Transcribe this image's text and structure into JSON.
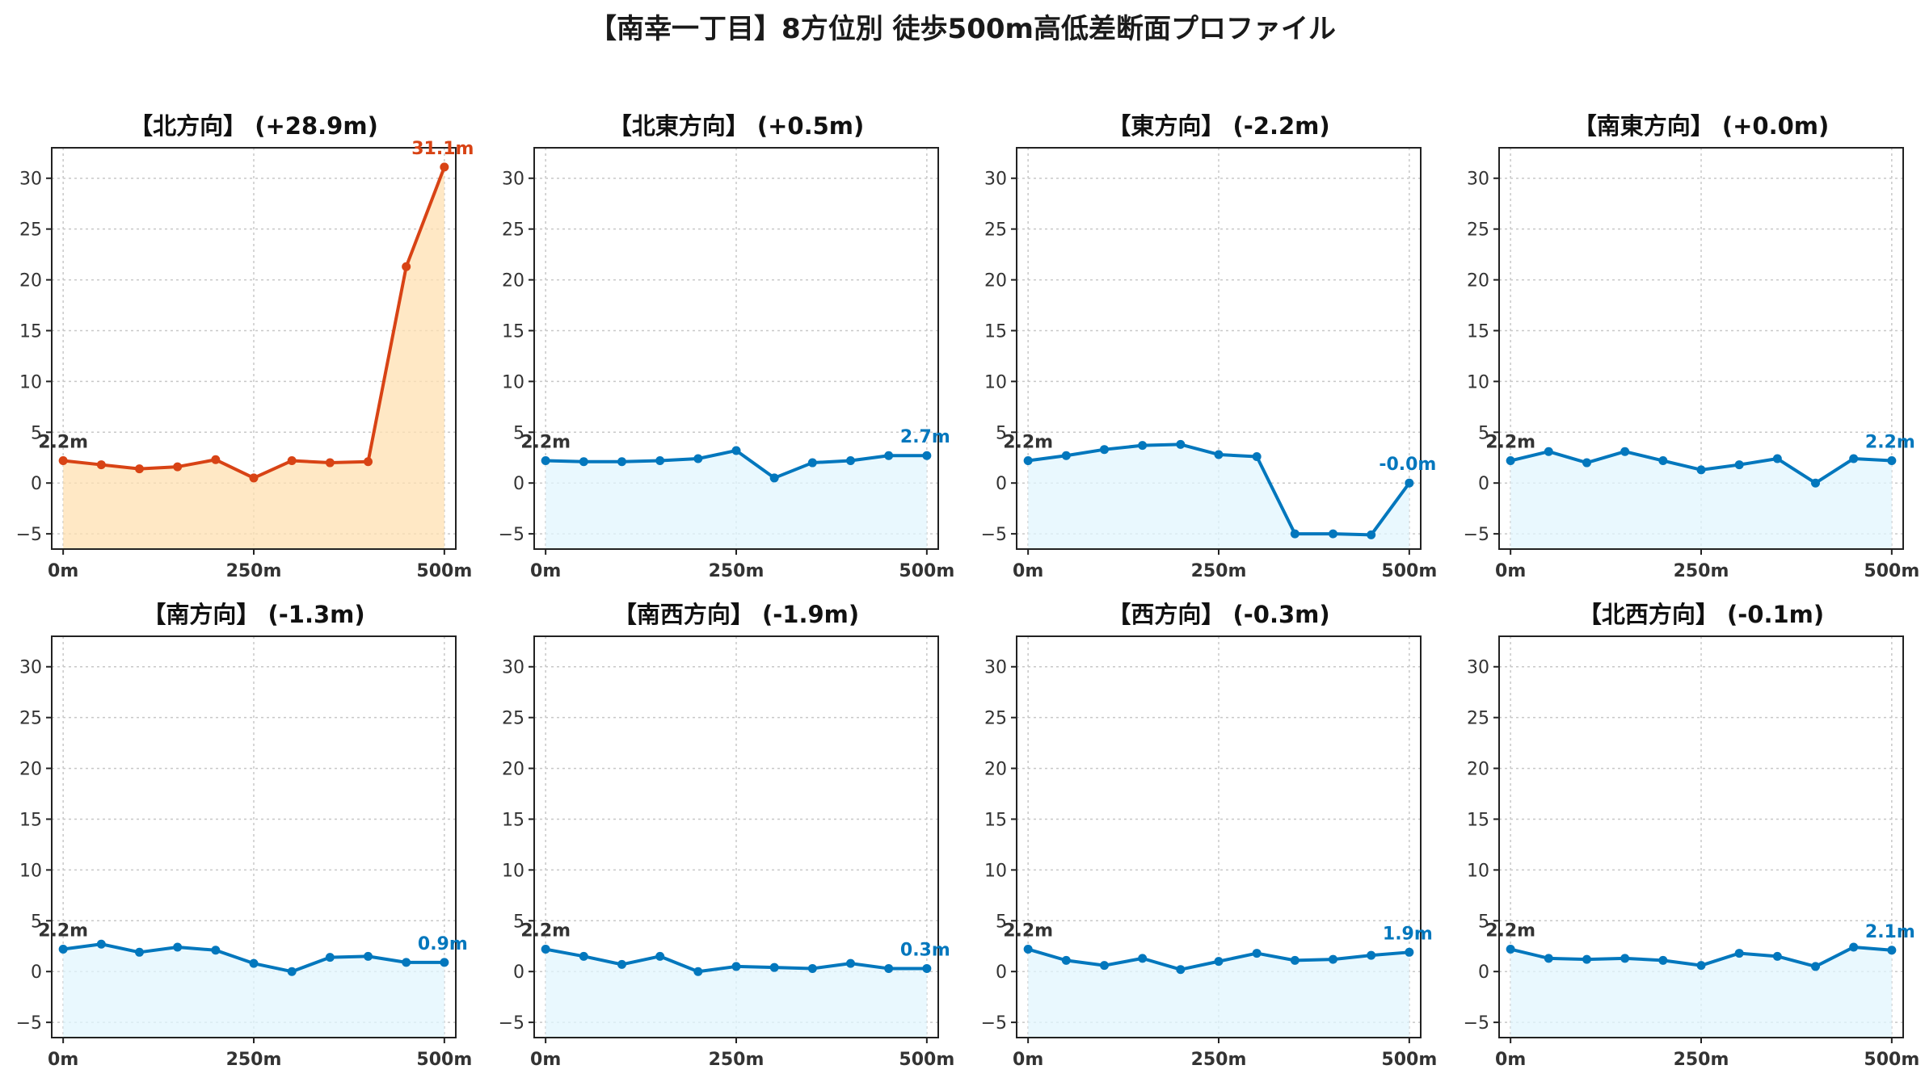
{
  "title": "【南幸一丁目】8方位別 徒歩500m高低差断面プロファイル",
  "colors": {
    "up": "#d84315",
    "up_fill": "#ffe0b2",
    "down": "#0277bd",
    "down_fill": "#e1f5fe",
    "start_label": "#333333"
  },
  "chart_data": [
    {
      "type": "area",
      "title": "【北方向】 (+28.9m)",
      "trend": "up",
      "x": [
        0,
        50,
        100,
        150,
        200,
        250,
        300,
        350,
        400,
        450,
        500
      ],
      "values": [
        2.2,
        1.8,
        1.4,
        1.6,
        2.3,
        0.5,
        2.2,
        2.0,
        2.1,
        21.3,
        31.1
      ],
      "start_label": "2.2m",
      "end_label": "31.1m"
    },
    {
      "type": "area",
      "title": "【北東方向】 (+0.5m)",
      "trend": "down",
      "x": [
        0,
        50,
        100,
        150,
        200,
        250,
        300,
        350,
        400,
        450,
        500
      ],
      "values": [
        2.2,
        2.1,
        2.1,
        2.2,
        2.4,
        3.2,
        0.5,
        2.0,
        2.2,
        2.7,
        2.7
      ],
      "start_label": "2.2m",
      "end_label": "2.7m"
    },
    {
      "type": "area",
      "title": "【東方向】 (-2.2m)",
      "trend": "down",
      "x": [
        0,
        50,
        100,
        150,
        200,
        250,
        300,
        350,
        400,
        450,
        500
      ],
      "values": [
        2.2,
        2.7,
        3.3,
        3.7,
        3.8,
        2.8,
        2.6,
        -5.0,
        -5.0,
        -5.1,
        0.0
      ],
      "start_label": "2.2m",
      "end_label": "-0.0m"
    },
    {
      "type": "area",
      "title": "【南東方向】 (+0.0m)",
      "trend": "down",
      "x": [
        0,
        50,
        100,
        150,
        200,
        250,
        300,
        350,
        400,
        450,
        500
      ],
      "values": [
        2.2,
        3.1,
        2.0,
        3.1,
        2.2,
        1.3,
        1.8,
        2.4,
        0.0,
        2.4,
        2.2
      ],
      "start_label": "2.2m",
      "end_label": "2.2m"
    },
    {
      "type": "area",
      "title": "【南方向】 (-1.3m)",
      "trend": "down",
      "x": [
        0,
        50,
        100,
        150,
        200,
        250,
        300,
        350,
        400,
        450,
        500
      ],
      "values": [
        2.2,
        2.7,
        1.9,
        2.4,
        2.1,
        0.8,
        0.0,
        1.4,
        1.5,
        0.9,
        0.9
      ],
      "start_label": "2.2m",
      "end_label": "0.9m"
    },
    {
      "type": "area",
      "title": "【南西方向】 (-1.9m)",
      "trend": "down",
      "x": [
        0,
        50,
        100,
        150,
        200,
        250,
        300,
        350,
        400,
        450,
        500
      ],
      "values": [
        2.2,
        1.5,
        0.7,
        1.5,
        0.0,
        0.5,
        0.4,
        0.3,
        0.8,
        0.3,
        0.3
      ],
      "start_label": "2.2m",
      "end_label": "0.3m"
    },
    {
      "type": "area",
      "title": "【西方向】 (-0.3m)",
      "trend": "down",
      "x": [
        0,
        50,
        100,
        150,
        200,
        250,
        300,
        350,
        400,
        450,
        500
      ],
      "values": [
        2.2,
        1.1,
        0.6,
        1.3,
        0.2,
        1.0,
        1.8,
        1.1,
        1.2,
        1.6,
        1.9
      ],
      "start_label": "2.2m",
      "end_label": "1.9m"
    },
    {
      "type": "area",
      "title": "【北西方向】 (-0.1m)",
      "trend": "down",
      "x": [
        0,
        50,
        100,
        150,
        200,
        250,
        300,
        350,
        400,
        450,
        500
      ],
      "values": [
        2.2,
        1.3,
        1.2,
        1.3,
        1.1,
        0.6,
        1.8,
        1.5,
        0.5,
        2.4,
        2.1
      ],
      "start_label": "2.2m",
      "end_label": "2.1m"
    }
  ],
  "axes": {
    "ylim": [
      -6.5,
      33
    ],
    "yticks": [
      -5,
      0,
      5,
      10,
      15,
      20,
      25,
      30
    ],
    "xlim": [
      -15,
      515
    ],
    "xticks": [
      0,
      250,
      500
    ],
    "xtick_labels": [
      "0m",
      "250m",
      "500m"
    ],
    "grid": true
  }
}
